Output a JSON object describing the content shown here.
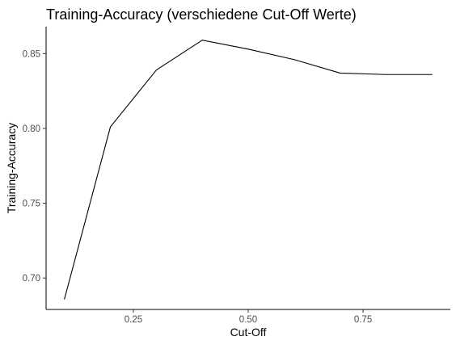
{
  "chart_data": {
    "type": "line",
    "title": "Training-Accuracy (verschiedene Cut-Off Werte)",
    "xlabel": "Cut-Off",
    "ylabel": "Training-Accuracy",
    "grid": false,
    "xlim": [
      0.06,
      0.94
    ],
    "ylim": [
      0.679,
      0.868
    ],
    "x_ticks": [
      0.25,
      0.5,
      0.75
    ],
    "x_tick_labels": [
      "0.25",
      "0.50",
      "0.75"
    ],
    "y_ticks": [
      0.7,
      0.75,
      0.8,
      0.85
    ],
    "y_tick_labels": [
      "0.70",
      "0.75",
      "0.80",
      "0.85"
    ],
    "x": [
      0.1,
      0.2,
      0.3,
      0.4,
      0.5,
      0.6,
      0.7,
      0.8,
      0.9
    ],
    "series": [
      {
        "values": [
          0.686,
          0.801,
          0.839,
          0.859,
          0.853,
          0.846,
          0.837,
          0.836,
          0.836
        ]
      }
    ],
    "line_color": "#000000"
  }
}
